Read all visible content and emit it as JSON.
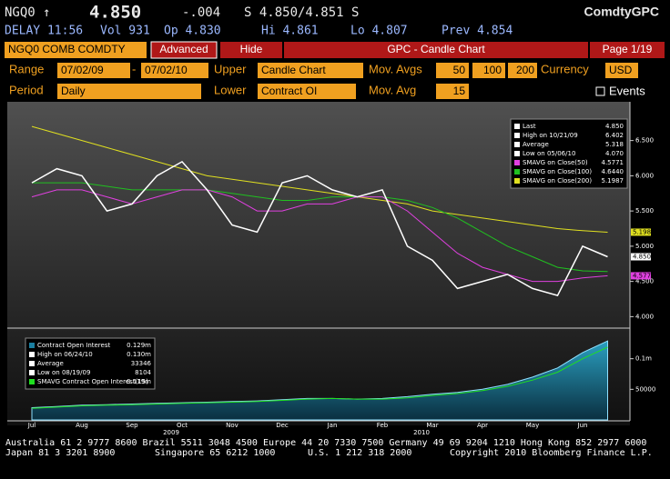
{
  "header": {
    "ticker": "NGQ0 ↑",
    "last": "4.850",
    "change": "-.004",
    "bid_ask": "S 4.850/4.851 S",
    "function": "ComdtyGPC",
    "delay": "DELAY 11:56",
    "vol": "Vol 931",
    "open": "Op 4.830",
    "high": "Hi 4.861",
    "low": "Lo 4.807",
    "prev": "Prev 4.854"
  },
  "toolbar": {
    "security": "NGQ0 COMB COMDTY",
    "advanced": "Advanced",
    "hide": "Hide",
    "title": "GPC - Candle Chart",
    "page": "Page 1/19",
    "range_label": "Range",
    "range_start": "07/02/09",
    "range_sep": "-",
    "range_end": "07/02/10",
    "upper_label": "Upper",
    "upper": "Candle Chart",
    "mov_avgs_label": "Mov. Avgs",
    "mov_avgs": [
      "50",
      "100",
      "200"
    ],
    "currency_label": "Currency",
    "currency": "USD",
    "period_label": "Period",
    "period": "Daily",
    "lower_label": "Lower",
    "lower": "Contract OI",
    "mov_avg_label": "Mov. Avg",
    "mov_avg": "15",
    "events": "Events"
  },
  "chart_data": [
    {
      "type": "line",
      "categories": [
        "Jul",
        null,
        "Aug",
        null,
        "Sep",
        null,
        "Oct",
        null,
        "Nov",
        null,
        "Dec",
        null,
        "Jan",
        null,
        "Feb",
        null,
        "Mar",
        null,
        "Apr",
        null,
        "May",
        null,
        "Jun",
        null
      ],
      "year_labels": [
        {
          "value": 6,
          "label": "2009"
        },
        {
          "value": 16,
          "label": "2010"
        }
      ],
      "ylim": [
        3.85,
        7.05
      ],
      "yticks": [
        {
          "value": 4,
          "label": "4.000"
        },
        {
          "value": 4.5,
          "label": "4.500"
        },
        {
          "value": 5,
          "label": "5.000"
        },
        {
          "value": 5.5,
          "label": "5.500"
        },
        {
          "value": 6,
          "label": "6.000"
        },
        {
          "value": 6.5,
          "label": "6.500"
        }
      ],
      "stats": [
        {
          "label": "High on 10/21/09",
          "value": "6.402"
        },
        {
          "label": "Average",
          "value": "5.318"
        },
        {
          "label": "Low on 05/06/10",
          "value": "4.070"
        }
      ],
      "series": [
        {
          "name": "Last",
          "legend_value": "4.850",
          "color": "#ffffff",
          "values": [
            5.9,
            6.1,
            6.0,
            5.5,
            5.6,
            6.0,
            6.2,
            5.8,
            5.3,
            5.2,
            5.9,
            6.0,
            5.8,
            5.7,
            5.8,
            5.0,
            4.8,
            4.4,
            4.5,
            4.6,
            4.4,
            4.3,
            5.0,
            4.85
          ]
        },
        {
          "name": "SMAVG on Close(50)",
          "legend_value": "4.5771",
          "color": "#e040e0",
          "values": [
            5.7,
            5.8,
            5.8,
            5.7,
            5.6,
            5.7,
            5.8,
            5.8,
            5.7,
            5.5,
            5.5,
            5.6,
            5.6,
            5.7,
            5.7,
            5.5,
            5.2,
            4.9,
            4.7,
            4.6,
            4.5,
            4.5,
            4.55,
            4.58
          ]
        },
        {
          "name": "SMAVG on Close(100)",
          "legend_value": "4.6440",
          "color": "#20c020",
          "values": [
            5.9,
            5.9,
            5.9,
            5.85,
            5.8,
            5.8,
            5.8,
            5.8,
            5.75,
            5.7,
            5.65,
            5.65,
            5.7,
            5.7,
            5.7,
            5.65,
            5.55,
            5.4,
            5.2,
            5.0,
            4.85,
            4.7,
            4.65,
            4.64
          ]
        },
        {
          "name": "SMAVG on Close(200)",
          "legend_value": "5.1987",
          "color": "#e0e020",
          "values": [
            6.7,
            6.6,
            6.5,
            6.4,
            6.3,
            6.2,
            6.1,
            6.0,
            5.95,
            5.9,
            5.85,
            5.8,
            5.75,
            5.7,
            5.65,
            5.6,
            5.5,
            5.45,
            5.4,
            5.35,
            5.3,
            5.25,
            5.22,
            5.199
          ]
        }
      ]
    },
    {
      "type": "area",
      "ylim": [
        0,
        150000
      ],
      "yticks": [
        {
          "value": 50000,
          "label": "50000"
        },
        {
          "value": 100000,
          "label": "0.1m"
        }
      ],
      "stats": [
        {
          "label": "High on 06/24/10",
          "value": "0.130m"
        },
        {
          "label": "Average",
          "value": "33346"
        },
        {
          "label": "Low on 08/19/09",
          "value": "8104"
        }
      ],
      "series": [
        {
          "name": "Contract Open Interest",
          "legend_value": "0.129m",
          "color": "#1a7fa0",
          "values": [
            20000,
            22000,
            24000,
            25000,
            26000,
            27000,
            28000,
            29000,
            30000,
            31000,
            33000,
            35000,
            35000,
            34000,
            35000,
            38000,
            42000,
            45000,
            50000,
            58000,
            70000,
            85000,
            110000,
            129000
          ]
        },
        {
          "name": "SMAVG Contract Open Interest(15)",
          "legend_value": "0.119m",
          "color": "#20e020",
          "values": [
            19000,
            21000,
            23000,
            24000,
            25000,
            26000,
            27000,
            28000,
            29000,
            30000,
            32000,
            34000,
            35000,
            34000,
            34000,
            36000,
            40000,
            43000,
            48000,
            55000,
            65000,
            78000,
            100000,
            119000
          ]
        }
      ]
    }
  ],
  "footer": {
    "line1": "Australia 61 2 9777 8600 Brazil 5511 3048 4500 Europe 44 20 7330 7500 Germany 49 69 9204 1210 Hong Kong 852 2977 6000",
    "line2": [
      "Japan 81 3 3201 8900",
      "Singapore 65 6212 1000",
      "U.S. 1 212 318 2000",
      "Copyright 2010 Bloomberg Finance L.P."
    ]
  }
}
